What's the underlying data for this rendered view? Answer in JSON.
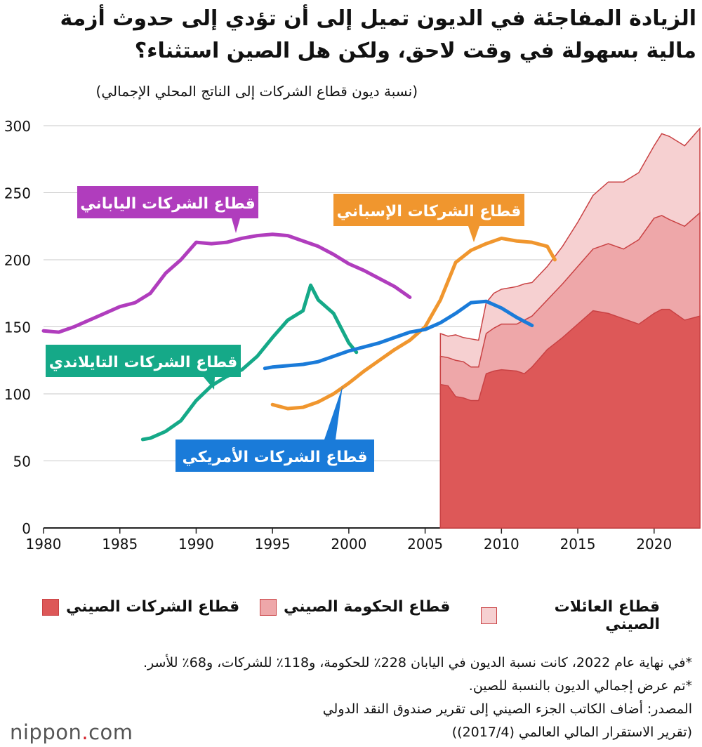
{
  "title": "الزيادة المفاجئة في الديون تميل إلى أن تؤدي إلى حدوث أزمة مالية بسهولة في وقت لاحق، ولكن هل الصين استثناء؟",
  "logo": {
    "text": "nippon",
    "dot": ".",
    "suffix": "com"
  },
  "notes": [
    "*في نهاية عام 2022، كانت نسبة الديون في اليابان 228٪ للحكومة، و118٪ للشركات، و68٪ للأسر.",
    "*تم عرض إجمالي الديون بالنسبة للصين.",
    "المصدر: أضاف الكاتب الجزء الصيني إلى تقرير صندوق النقد الدولي",
    "(تقرير الاستقرار المالي العالمي (2017/4))"
  ],
  "chart_data": {
    "type": "line",
    "title": "الزيادة المفاجئة في الديون تميل إلى أن تؤدي إلى حدوث أزمة مالية بسهولة في وقت لاحق، ولكن هل الصين استثناء؟",
    "xlabel": "",
    "ylabel": "(نسبة ديون قطاع الشركات إلى الناتج المحلي الإجمالي)",
    "xlim": [
      1980,
      2023
    ],
    "ylim": [
      0,
      300
    ],
    "xticks": [
      1980,
      1985,
      1990,
      1995,
      2000,
      2005,
      2010,
      2015,
      2020
    ],
    "yticks": [
      0,
      50,
      100,
      150,
      200,
      250,
      300
    ],
    "grid": true,
    "series": [
      {
        "name": "قطاع الشركات الياباني",
        "color": "#b03dbd",
        "label_text": "قطاع الشركات الياباني",
        "x": [
          1980,
          1981,
          1982,
          1983,
          1984,
          1985,
          1986,
          1987,
          1988,
          1989,
          1990,
          1991,
          1992,
          1993,
          1994,
          1995,
          1996,
          1997,
          1998,
          1999,
          2000,
          2001,
          2002,
          2003,
          2004
        ],
        "y": [
          147,
          146,
          150,
          155,
          160,
          165,
          168,
          175,
          190,
          200,
          213,
          212,
          213,
          216,
          218,
          219,
          218,
          214,
          210,
          204,
          197,
          192,
          186,
          180,
          172
        ]
      },
      {
        "name": "قطاع الشركات الإسباني",
        "color": "#f0962e",
        "label_text": "قطاع الشركات الإسباني",
        "x": [
          1995,
          1996,
          1997,
          1998,
          1999,
          2000,
          2001,
          2002,
          2003,
          2004,
          2005,
          2006,
          2007,
          2008,
          2009,
          2010,
          2011,
          2012,
          2013,
          2013.5
        ],
        "y": [
          92,
          89,
          90,
          94,
          100,
          108,
          117,
          125,
          133,
          140,
          150,
          170,
          198,
          207,
          212,
          216,
          214,
          213,
          210,
          200
        ]
      },
      {
        "name": "قطاع الشركات التايلاندي",
        "color": "#15a988",
        "label_text": "قطاع الشركات التايلاندي",
        "x": [
          1986.5,
          1987,
          1988,
          1989,
          1990,
          1991,
          1992,
          1993,
          1994,
          1995,
          1996,
          1997,
          1997.5,
          1998,
          1999,
          2000,
          2000.5
        ],
        "y": [
          66,
          67,
          72,
          80,
          95,
          106,
          113,
          118,
          128,
          142,
          155,
          162,
          181,
          170,
          160,
          138,
          131
        ]
      },
      {
        "name": "قطاع الشركات الأمريكي",
        "color": "#1a7bd9",
        "label_text": "قطاع الشركات الأمريكي",
        "x": [
          1994.5,
          1995,
          1996,
          1997,
          1998,
          1999,
          2000,
          2001,
          2002,
          2003,
          2004,
          2005,
          2006,
          2007,
          2008,
          2009,
          2010,
          2011,
          2012
        ],
        "y": [
          119,
          120,
          121,
          122,
          124,
          128,
          132,
          135,
          138,
          142,
          146,
          148,
          153,
          160,
          168,
          169,
          164,
          157,
          151
        ]
      }
    ],
    "area_series": [
      {
        "name": "قطاع الشركات الصيني",
        "color": "#dd5858",
        "x": [
          2006,
          2006.5,
          2007,
          2007.5,
          2008,
          2008.5,
          2009,
          2009.5,
          2010,
          2011,
          2011.5,
          2012,
          2013,
          2014,
          2015,
          2016,
          2017,
          2018,
          2019,
          2020,
          2020.5,
          2021,
          2022,
          2023
        ],
        "y": [
          107,
          106,
          98,
          97,
          95,
          95,
          115,
          117,
          118,
          117,
          115,
          120,
          133,
          142,
          152,
          162,
          160,
          156,
          152,
          160,
          163,
          163,
          155,
          158
        ]
      },
      {
        "name": "قطاع الحكومة الصيني",
        "color": "#eea7a9",
        "x": [
          2006,
          2006.5,
          2007,
          2007.5,
          2008,
          2008.5,
          2009,
          2009.5,
          2010,
          2011,
          2011.5,
          2012,
          2013,
          2014,
          2015,
          2016,
          2017,
          2018,
          2019,
          2020,
          2020.5,
          2021,
          2022,
          2023
        ],
        "y": [
          128,
          127,
          125,
          124,
          120,
          120,
          145,
          149,
          152,
          152,
          155,
          158,
          170,
          182,
          195,
          208,
          212,
          208,
          215,
          231,
          233,
          230,
          225,
          235
        ]
      },
      {
        "name": "قطاع العائلات الصيني",
        "color": "#f6d0d1",
        "x": [
          2006,
          2006.5,
          2007,
          2007.5,
          2008,
          2008.5,
          2009,
          2009.5,
          2010,
          2011,
          2011.5,
          2012,
          2013,
          2014,
          2015,
          2016,
          2017,
          2018,
          2019,
          2020,
          2020.5,
          2021,
          2022,
          2023
        ],
        "y": [
          145,
          143,
          144,
          142,
          141,
          140,
          168,
          175,
          178,
          180,
          182,
          183,
          195,
          210,
          228,
          248,
          258,
          258,
          265,
          285,
          294,
          292,
          285,
          298
        ]
      }
    ],
    "legend": {
      "placement": "bottom",
      "entries": [
        "قطاع العائلات الصيني",
        "قطاع الحكومة الصيني",
        "قطاع الشركات الصيني"
      ]
    }
  }
}
